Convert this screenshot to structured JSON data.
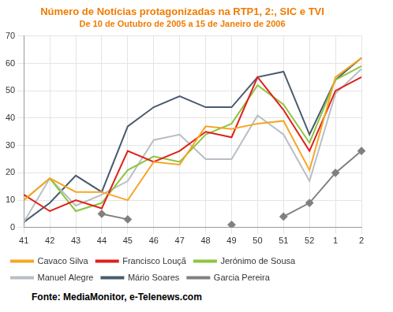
{
  "chart_data": {
    "type": "line",
    "title": "Número de Notícias protagonizadas na RTP1, 2:, SIC e TVI",
    "subtitle": "De 10 de Outubro de 2005 a 15 de Janeiro de 2006",
    "source": "Fonte: MediaMonitor, e-Telenews.com",
    "categories": [
      "41",
      "42",
      "43",
      "44",
      "45",
      "46",
      "47",
      "48",
      "49",
      "50",
      "51",
      "52",
      "1",
      "2"
    ],
    "series": [
      {
        "name": "Cavaco Silva",
        "color": "#f5a623",
        "marker": "none",
        "values": [
          10,
          18,
          13,
          13,
          10,
          24,
          23,
          37,
          36,
          38,
          39,
          21,
          55,
          62
        ]
      },
      {
        "name": "Francisco Louçã",
        "color": "#e0201b",
        "marker": "none",
        "values": [
          12,
          6,
          10,
          7,
          28,
          24,
          28,
          35,
          33,
          55,
          43,
          28,
          50,
          55
        ]
      },
      {
        "name": "Jerónimo de Sousa",
        "color": "#8cc63f",
        "marker": "none",
        "values": [
          10,
          18,
          6,
          9,
          21,
          26,
          24,
          34,
          38,
          52,
          45,
          31,
          54,
          59
        ]
      },
      {
        "name": "Manuel Alegre",
        "color": "#b8bec5",
        "marker": "none",
        "values": [
          2,
          18,
          8,
          12,
          17,
          32,
          34,
          25,
          25,
          41,
          34,
          17,
          49,
          58
        ]
      },
      {
        "name": "Mário Soares",
        "color": "#4a5a6e",
        "marker": "none",
        "values": [
          2,
          9,
          19,
          13,
          37,
          44,
          48,
          44,
          44,
          55,
          57,
          34,
          54,
          62
        ]
      },
      {
        "name": "Garcia Pereira",
        "color": "#808080",
        "marker": "diamond",
        "values": [
          null,
          null,
          null,
          5,
          3,
          null,
          null,
          null,
          1,
          null,
          4,
          9,
          20,
          28
        ]
      }
    ],
    "ylim": [
      0,
      70
    ],
    "yticks": [
      0,
      10,
      20,
      30,
      40,
      50,
      60,
      70
    ],
    "grid": true,
    "legend": "bottom"
  }
}
